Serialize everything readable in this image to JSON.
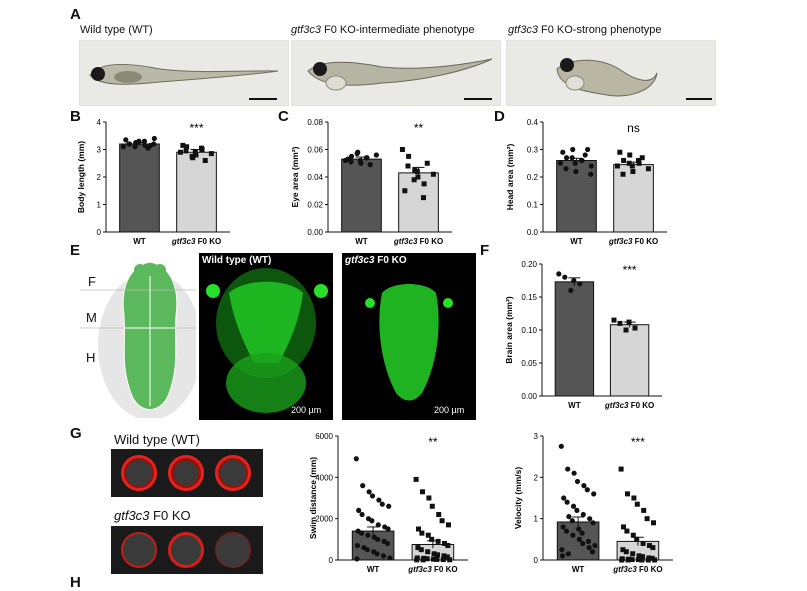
{
  "figure": {
    "panel_letters": [
      "A",
      "B",
      "C",
      "D",
      "E",
      "F",
      "G",
      "H"
    ],
    "panel_a": {
      "captions": [
        {
          "prefix": "",
          "italic": "",
          "text": "Wild type (WT)"
        },
        {
          "prefix": "",
          "italic": "gtf3c3",
          "text": " F0 KO-intermediate phenotype"
        },
        {
          "prefix": "",
          "italic": "gtf3c3",
          "text": " F0 KO-strong phenotype"
        }
      ]
    },
    "panel_e": {
      "regions": [
        "F",
        "M",
        "H"
      ],
      "wt_label": "Wild type (WT)",
      "ko_label_italic": "gtf3c3",
      "ko_label_rest": " F0 KO",
      "scale_wt": "200 µm",
      "scale_ko": "200 µm"
    },
    "panel_g": {
      "wt_label": "Wild type (WT)",
      "ko_label_italic": "gtf3c3",
      "ko_label_rest": " F0 KO"
    },
    "colors": {
      "wt_bar": "#555555",
      "ko_bar": "#d6d6d6",
      "brain_green": "#5cb85c",
      "fluor_green": "#27e02a",
      "track_red": "#e8211b"
    }
  },
  "chart_data": [
    {
      "id": "B",
      "type": "bar",
      "categories": [
        "WT",
        "gtf3c3 F0 KO"
      ],
      "values": [
        3.2,
        2.9
      ],
      "errors": [
        0.05,
        0.1
      ],
      "ylabel": "Body length (mm)",
      "ylim": [
        0,
        4
      ],
      "yticks": [
        "0",
        "1",
        "2",
        "3",
        "4"
      ],
      "significance": "***",
      "points": [
        [
          3.1,
          3.2,
          3.25,
          3.3,
          3.15,
          3.05,
          3.4,
          3.35,
          3.2,
          3.1,
          3.25,
          3.3,
          3.15,
          3.2
        ],
        [
          2.9,
          3.1,
          2.7,
          2.8,
          3.0,
          2.6,
          2.85,
          3.15,
          2.95,
          2.75,
          2.9,
          3.05
        ]
      ]
    },
    {
      "id": "C",
      "type": "bar",
      "categories": [
        "WT",
        "gtf3c3 F0 KO"
      ],
      "values": [
        0.053,
        0.043
      ],
      "errors": [
        0.0015,
        0.004
      ],
      "ylabel": "Eye area (mm²)",
      "ylim": [
        0,
        0.08
      ],
      "yticks": [
        "0.00",
        "0.02",
        "0.04",
        "0.06",
        "0.08"
      ],
      "significance": "**",
      "points": [
        [
          0.052,
          0.055,
          0.058,
          0.05,
          0.054,
          0.049,
          0.056,
          0.053,
          0.051,
          0.057,
          0.052,
          0.054
        ],
        [
          0.06,
          0.055,
          0.045,
          0.04,
          0.035,
          0.05,
          0.042,
          0.03,
          0.048,
          0.038,
          0.044,
          0.025
        ]
      ]
    },
    {
      "id": "D",
      "type": "bar",
      "categories": [
        "WT",
        "gtf3c3 F0 KO"
      ],
      "values": [
        0.26,
        0.245
      ],
      "errors": [
        0.008,
        0.009
      ],
      "ylabel": "Head area (mm²)",
      "ylim": [
        0,
        0.4
      ],
      "yticks": [
        "0.0",
        "0.1",
        "0.2",
        "0.3",
        "0.4"
      ],
      "significance": "ns",
      "points": [
        [
          0.25,
          0.27,
          0.3,
          0.22,
          0.26,
          0.28,
          0.24,
          0.29,
          0.23,
          0.27,
          0.25,
          0.26,
          0.3,
          0.21
        ],
        [
          0.24,
          0.26,
          0.28,
          0.22,
          0.25,
          0.27,
          0.23,
          0.29,
          0.21,
          0.25,
          0.24,
          0.26
        ]
      ]
    },
    {
      "id": "F",
      "type": "bar",
      "categories": [
        "WT",
        "gtf3c3 F0 KO"
      ],
      "values": [
        0.173,
        0.108
      ],
      "errors": [
        0.006,
        0.004
      ],
      "ylabel": "Brain area (mm²)",
      "ylim": [
        0,
        0.2
      ],
      "yticks": [
        "0.00",
        "0.05",
        "0.10",
        "0.15",
        "0.20"
      ],
      "significance": "***",
      "points": [
        [
          0.185,
          0.18,
          0.16,
          0.175,
          0.17
        ],
        [
          0.115,
          0.11,
          0.1,
          0.112,
          0.103
        ]
      ]
    },
    {
      "id": "G1",
      "type": "bar",
      "categories": [
        "WT",
        "gtf3c3 F0 KO"
      ],
      "values": [
        1400,
        750
      ],
      "errors": [
        200,
        180
      ],
      "ylabel": "Swim distance (mm)",
      "ylim": [
        0,
        6000
      ],
      "yticks": [
        "0",
        "2000",
        "4000",
        "6000"
      ],
      "significance": "**",
      "points": [
        [
          4900,
          3600,
          3300,
          3100,
          2900,
          2700,
          2600,
          2400,
          2200,
          2000,
          1900,
          1700,
          1600,
          1500,
          1400,
          1300,
          1200,
          1100,
          1000,
          900,
          800,
          700,
          600,
          500,
          400,
          300,
          200,
          100,
          50
        ],
        [
          3900,
          3300,
          3000,
          2600,
          2200,
          1900,
          1700,
          1500,
          1300,
          1200,
          1000,
          900,
          800,
          700,
          600,
          500,
          400,
          300,
          250,
          200,
          150,
          100,
          80,
          60,
          40,
          30,
          20,
          10,
          5,
          5
        ]
      ]
    },
    {
      "id": "G2",
      "type": "bar",
      "categories": [
        "WT",
        "gtf3c3 F0 KO"
      ],
      "values": [
        0.92,
        0.45
      ],
      "errors": [
        0.12,
        0.1
      ],
      "ylabel": "Velocity (mm/s)",
      "ylim": [
        0,
        3
      ],
      "yticks": [
        "0",
        "1",
        "2",
        "3"
      ],
      "significance": "***",
      "points": [
        [
          2.75,
          2.2,
          2.1,
          1.9,
          1.8,
          1.7,
          1.6,
          1.5,
          1.4,
          1.3,
          1.2,
          1.1,
          1.0,
          0.9,
          0.8,
          0.7,
          0.6,
          0.5,
          0.4,
          0.3,
          0.2,
          0.1,
          1.05,
          0.95,
          0.75,
          0.65,
          0.45,
          0.35,
          0.25,
          0.15
        ],
        [
          2.2,
          1.6,
          1.5,
          1.35,
          1.2,
          1.0,
          0.9,
          0.8,
          0.7,
          0.6,
          0.5,
          0.4,
          0.35,
          0.3,
          0.25,
          0.2,
          0.15,
          0.1,
          0.08,
          0.05,
          0.04,
          0.03,
          0.02,
          0.01,
          0.01,
          0.0,
          0.0,
          0.0,
          0.0,
          0.0
        ]
      ]
    }
  ]
}
